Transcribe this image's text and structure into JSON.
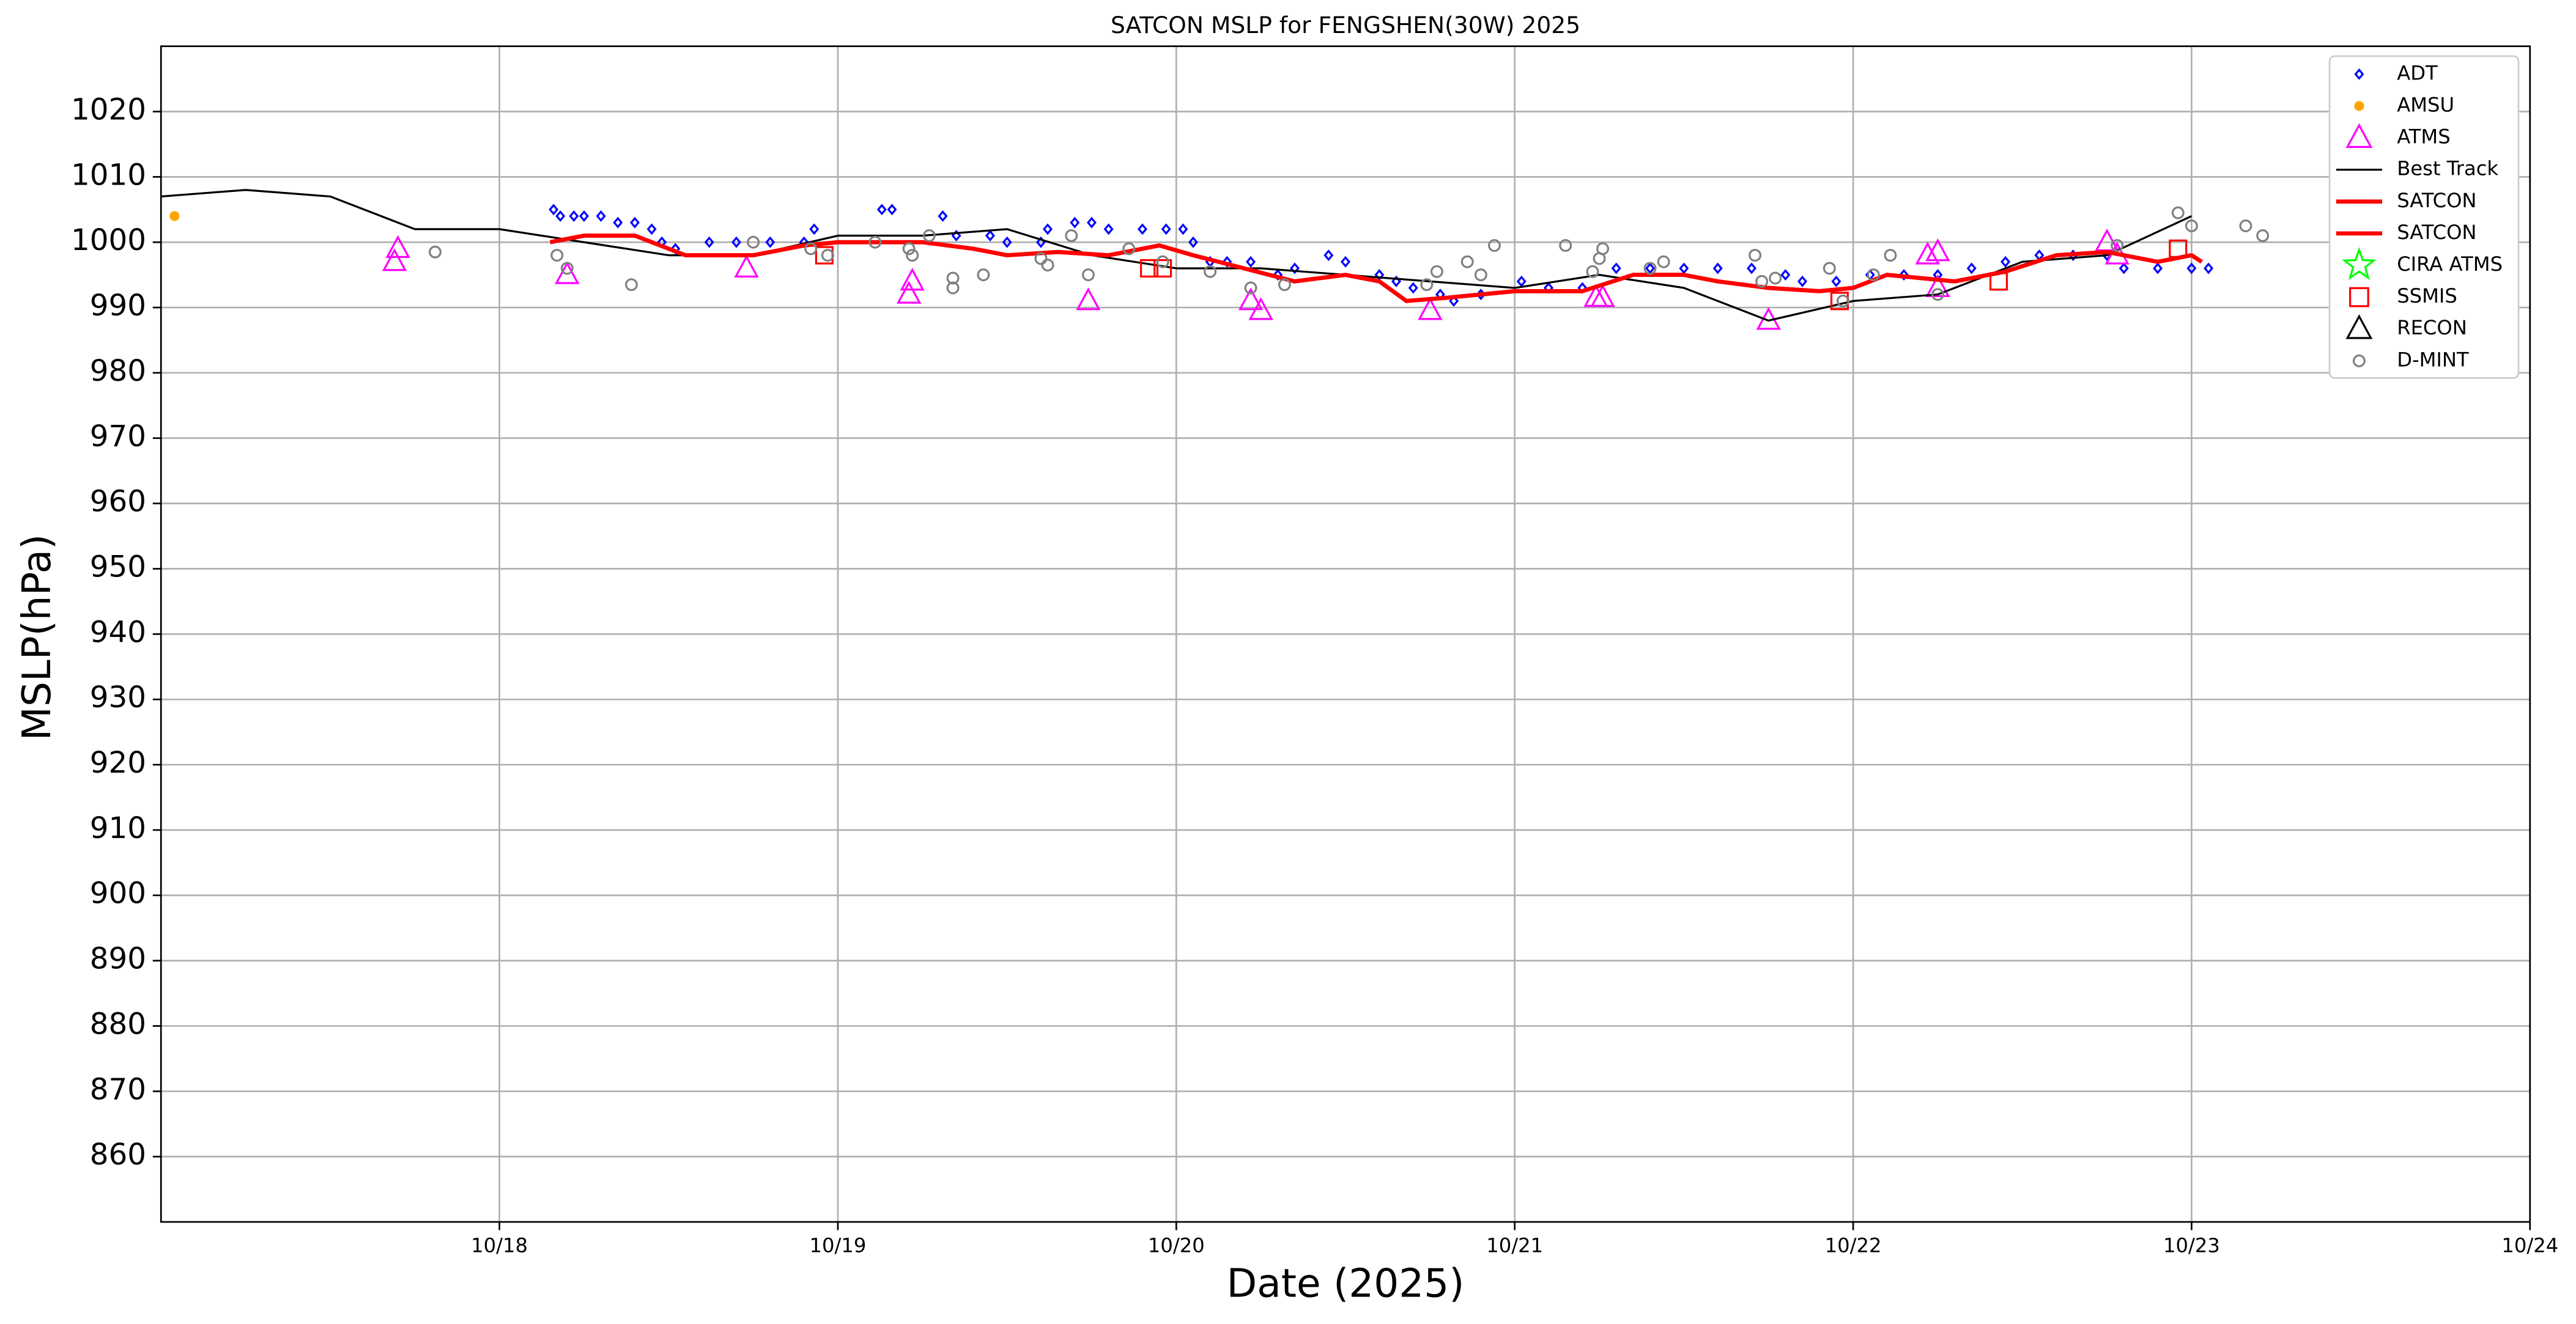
{
  "chart_data": {
    "type": "scatter",
    "title": "SATCON MSLP for FENGSHEN(30W) 2025",
    "x_label": "Date (2025)",
    "y_label": "MSLP(hPa)",
    "xlim": [
      17,
      24
    ],
    "xticks": [
      {
        "value": 18,
        "label": "10/18"
      },
      {
        "value": 19,
        "label": "10/19"
      },
      {
        "value": 20,
        "label": "10/20"
      },
      {
        "value": 21,
        "label": "10/21"
      },
      {
        "value": 22,
        "label": "10/22"
      },
      {
        "value": 23,
        "label": "10/23"
      },
      {
        "value": 24,
        "label": "10/24"
      }
    ],
    "ylim": [
      850,
      1030
    ],
    "yticks": [
      860,
      870,
      880,
      890,
      900,
      910,
      920,
      930,
      940,
      950,
      960,
      970,
      980,
      990,
      1000,
      1010,
      1020
    ],
    "grid": true,
    "legend": "upper right",
    "series": [
      {
        "name": "ADT",
        "color": "#0000ff",
        "marker": "diamond",
        "x": [
          18.16,
          18.18,
          18.22,
          18.25,
          18.3,
          18.35,
          18.4,
          18.45,
          18.48,
          18.52,
          18.62,
          18.7,
          18.8,
          18.9,
          18.93,
          19.13,
          19.16,
          19.31,
          19.35,
          19.45,
          19.5,
          19.6,
          19.62,
          19.7,
          19.75,
          19.8,
          19.9,
          19.97,
          20.02,
          20.05,
          20.1,
          20.15,
          20.22,
          20.3,
          20.35,
          20.45,
          20.5,
          20.6,
          20.65,
          20.7,
          20.78,
          20.82,
          20.9,
          21.02,
          21.1,
          21.2,
          21.3,
          21.4,
          21.5,
          21.6,
          21.7,
          21.8,
          21.85,
          21.95,
          22.05,
          22.15,
          22.25,
          22.35,
          22.45,
          22.55,
          22.65,
          22.75,
          22.8,
          22.9,
          23.0,
          23.05
        ],
        "values": [
          1005,
          1004,
          1004,
          1004,
          1004,
          1003,
          1003,
          1002,
          1000,
          999,
          1000,
          1000,
          1000,
          1000,
          1002,
          1005,
          1005,
          1004,
          1001,
          1001,
          1000,
          1000,
          1002,
          1003,
          1003,
          1002,
          1002,
          1002,
          1002,
          1000,
          997,
          997,
          997,
          995,
          996,
          998,
          997,
          995,
          994,
          993,
          992,
          991,
          992,
          994,
          993,
          993,
          996,
          996,
          996,
          996,
          996,
          995,
          994,
          994,
          995,
          995,
          995,
          996,
          997,
          998,
          998,
          998,
          996,
          996,
          996,
          996
        ]
      },
      {
        "name": "AMSU",
        "color": "#ffa500",
        "marker": "dot",
        "x": [
          17.04
        ],
        "values": [
          1004
        ]
      },
      {
        "name": "ATMS",
        "color": "#ff00ff",
        "marker": "triangle",
        "x": [
          17.69,
          17.7,
          18.2,
          18.73,
          19.21,
          19.22,
          19.74,
          20.22,
          20.25,
          20.75,
          21.24,
          21.26,
          21.75,
          22.22,
          22.25,
          22.25,
          22.75,
          22.78
        ],
        "values": [
          997,
          999,
          995,
          996,
          992,
          994,
          991,
          991,
          989.5,
          989.5,
          991.5,
          991.5,
          988,
          998,
          998.5,
          993,
          1000,
          998
        ]
      },
      {
        "name": "Best Track",
        "color": "#000000",
        "marker": "line",
        "x": [
          17.0,
          17.25,
          17.5,
          17.75,
          18.0,
          18.25,
          18.5,
          18.75,
          19.0,
          19.25,
          19.5,
          19.75,
          20.0,
          20.25,
          20.5,
          20.75,
          21.0,
          21.25,
          21.5,
          21.75,
          22.0,
          22.25,
          22.5,
          22.75,
          23.0
        ],
        "values": [
          1007,
          1008,
          1007,
          1002,
          1002,
          1000,
          998,
          998,
          1001,
          1001,
          1002,
          998,
          996,
          996,
          995,
          994,
          993,
          995,
          993,
          988,
          991,
          992,
          997,
          998,
          1004
        ]
      },
      {
        "name": "SATCON",
        "color": "#ff0000",
        "marker": "thick-line",
        "x": [
          18.15,
          18.25,
          18.4,
          18.55,
          18.75,
          18.9,
          19.0,
          19.25,
          19.4,
          19.5,
          19.65,
          19.8,
          19.95,
          20.05,
          20.2,
          20.35,
          20.5,
          20.6,
          20.68,
          20.8,
          21.0,
          21.2,
          21.35,
          21.5,
          21.6,
          21.75,
          21.9,
          22.0,
          22.1,
          22.3,
          22.45,
          22.6,
          22.75,
          22.9,
          23.0,
          23.03
        ],
        "values": [
          1000,
          1001,
          1001,
          998,
          998,
          999.5,
          1000,
          1000,
          999,
          998,
          998.5,
          998,
          999.5,
          998,
          996,
          994,
          995,
          994,
          991,
          991.5,
          992.5,
          992.5,
          995,
          995,
          994,
          993,
          992.5,
          993,
          995,
          994,
          995.5,
          998,
          998.5,
          997,
          998,
          997
        ]
      },
      {
        "name": "SATCON",
        "color": "#ff0000",
        "marker": "thick-line",
        "x": [
          18.15,
          18.25,
          18.4,
          18.55,
          18.75,
          18.9,
          19.0,
          19.25,
          19.4,
          19.5,
          19.65,
          19.8,
          19.95,
          20.05,
          20.2,
          20.35,
          20.5,
          20.6,
          20.68,
          20.8,
          21.0,
          21.2,
          21.35,
          21.5,
          21.6,
          21.75,
          21.9,
          22.0,
          22.1,
          22.3,
          22.45,
          22.6,
          22.75,
          22.9,
          23.0,
          23.03
        ],
        "values": [
          1000,
          1001,
          1001,
          998,
          998,
          999.5,
          1000,
          1000,
          999,
          998,
          998.5,
          998,
          999.5,
          998,
          996,
          994,
          995,
          994,
          991,
          991.5,
          992.5,
          992.5,
          995,
          995,
          994,
          993,
          992.5,
          993,
          995,
          994,
          995.5,
          998,
          998.5,
          997,
          998,
          997
        ]
      },
      {
        "name": "CIRA ATMS",
        "color": "#00ff00",
        "marker": "star",
        "x": [],
        "values": []
      },
      {
        "name": "SSMIS",
        "color": "#ff0000",
        "marker": "square",
        "x": [
          18.96,
          19.92,
          19.96,
          21.96,
          22.43,
          22.96
        ],
        "values": [
          998,
          996,
          996,
          991,
          994,
          999
        ]
      },
      {
        "name": "RECON",
        "color": "#000000",
        "marker": "triangle",
        "x": [],
        "values": []
      },
      {
        "name": "D-MINT",
        "color": "#808080",
        "marker": "circle",
        "x": [
          17.81,
          18.17,
          18.2,
          18.39,
          18.75,
          18.92,
          18.97,
          19.11,
          19.21,
          19.22,
          19.27,
          19.34,
          19.34,
          19.43,
          19.6,
          19.62,
          19.69,
          19.74,
          19.86,
          19.96,
          20.1,
          20.22,
          20.32,
          20.74,
          20.77,
          20.86,
          20.9,
          20.94,
          21.15,
          21.23,
          21.25,
          21.26,
          21.4,
          21.44,
          21.71,
          21.73,
          21.77,
          21.93,
          21.97,
          22.06,
          22.11,
          22.25,
          22.78,
          22.96,
          23.0,
          23.16,
          23.21
        ],
        "values": [
          998.5,
          998,
          996,
          993.5,
          1000,
          999,
          998,
          1000,
          999,
          998,
          1001,
          994.5,
          993,
          995,
          997.5,
          996.5,
          1001,
          995,
          999,
          997,
          995.5,
          993,
          993.5,
          993.5,
          995.5,
          997,
          995,
          999.5,
          999.5,
          995.5,
          997.5,
          999,
          996,
          997,
          998,
          994,
          994.5,
          996,
          991,
          995,
          998,
          992,
          999.5,
          1004.5,
          1002.5,
          1002.5,
          1001
        ]
      }
    ]
  }
}
